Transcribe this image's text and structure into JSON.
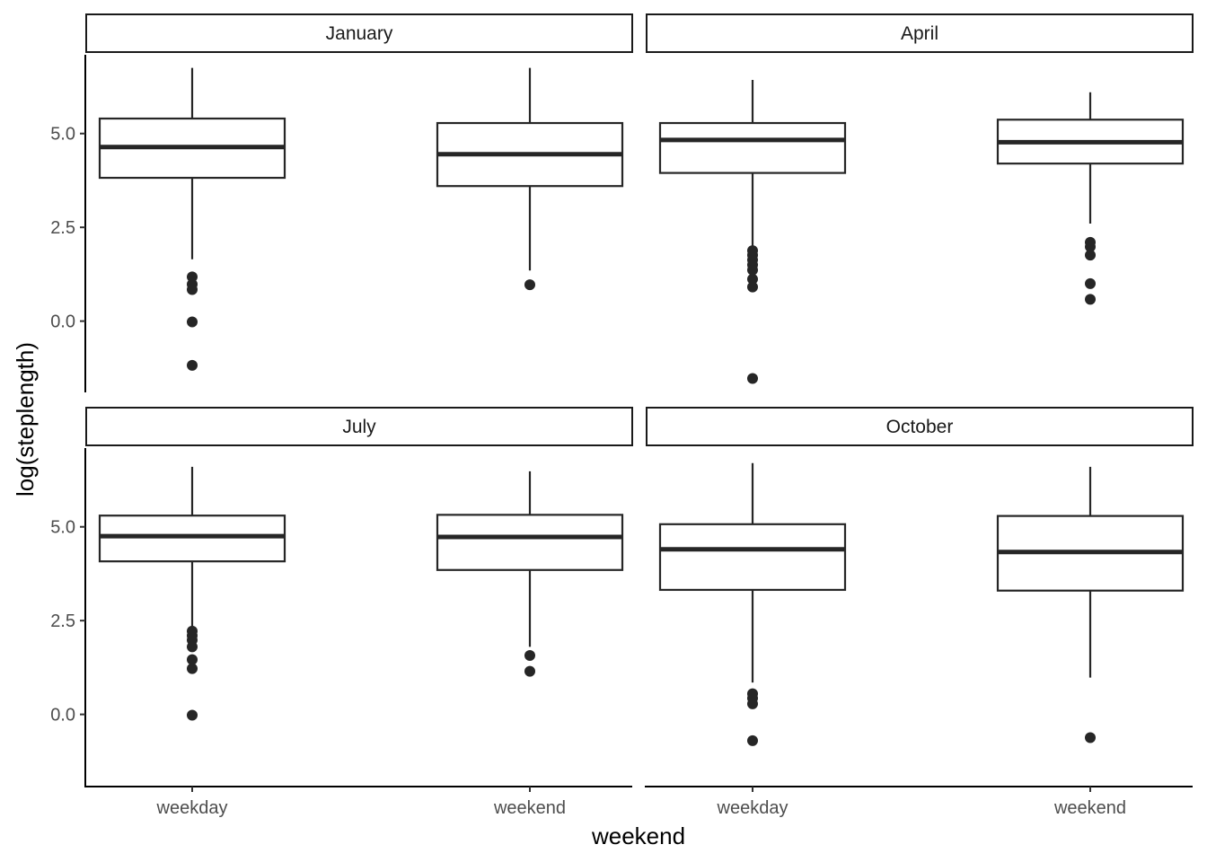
{
  "chart_data": {
    "type": "boxplot",
    "xlabel": "weekend",
    "ylabel": "log(steplength)",
    "ylim": [
      -1.9,
      7.1
    ],
    "yticks": [
      0.0,
      2.5,
      5.0
    ],
    "ytick_labels": [
      "0.0",
      "2.5",
      "5.0"
    ],
    "categories": [
      "weekday",
      "weekend"
    ],
    "grid": false,
    "layout": "2x2 facets",
    "facets": [
      {
        "label": "January",
        "boxes": [
          {
            "category": "weekday",
            "min": 1.65,
            "q1": 3.82,
            "median": 4.64,
            "q3": 5.4,
            "max": 6.75,
            "outliers": [
              1.18,
              0.98,
              0.84,
              -0.02,
              -1.18
            ]
          },
          {
            "category": "weekend",
            "min": 1.35,
            "q1": 3.6,
            "median": 4.45,
            "q3": 5.28,
            "max": 6.75,
            "outliers": [
              0.97
            ]
          }
        ]
      },
      {
        "label": "April",
        "boxes": [
          {
            "category": "weekday",
            "min": 1.95,
            "q1": 3.95,
            "median": 4.83,
            "q3": 5.28,
            "max": 6.43,
            "outliers": [
              1.88,
              1.76,
              1.63,
              1.5,
              1.36,
              1.12,
              0.91,
              -1.53
            ]
          },
          {
            "category": "weekend",
            "min": 2.6,
            "q1": 4.2,
            "median": 4.77,
            "q3": 5.37,
            "max": 6.1,
            "outliers": [
              2.1,
              1.98,
              1.76,
              1.0,
              0.58
            ]
          }
        ]
      },
      {
        "label": "July",
        "boxes": [
          {
            "category": "weekday",
            "min": 2.28,
            "q1": 4.08,
            "median": 4.75,
            "q3": 5.3,
            "max": 6.6,
            "outliers": [
              2.22,
              2.1,
              1.98,
              1.8,
              1.46,
              1.22,
              -0.02
            ]
          },
          {
            "category": "weekend",
            "min": 1.8,
            "q1": 3.85,
            "median": 4.73,
            "q3": 5.32,
            "max": 6.48,
            "outliers": [
              1.57,
              1.15
            ]
          }
        ]
      },
      {
        "label": "October",
        "boxes": [
          {
            "category": "weekday",
            "min": 0.85,
            "q1": 3.32,
            "median": 4.4,
            "q3": 5.07,
            "max": 6.7,
            "outliers": [
              0.55,
              0.43,
              0.28,
              -0.7
            ]
          },
          {
            "category": "weekend",
            "min": 0.98,
            "q1": 3.3,
            "median": 4.33,
            "q3": 5.29,
            "max": 6.6,
            "outliers": [
              -0.62
            ]
          }
        ]
      }
    ]
  }
}
